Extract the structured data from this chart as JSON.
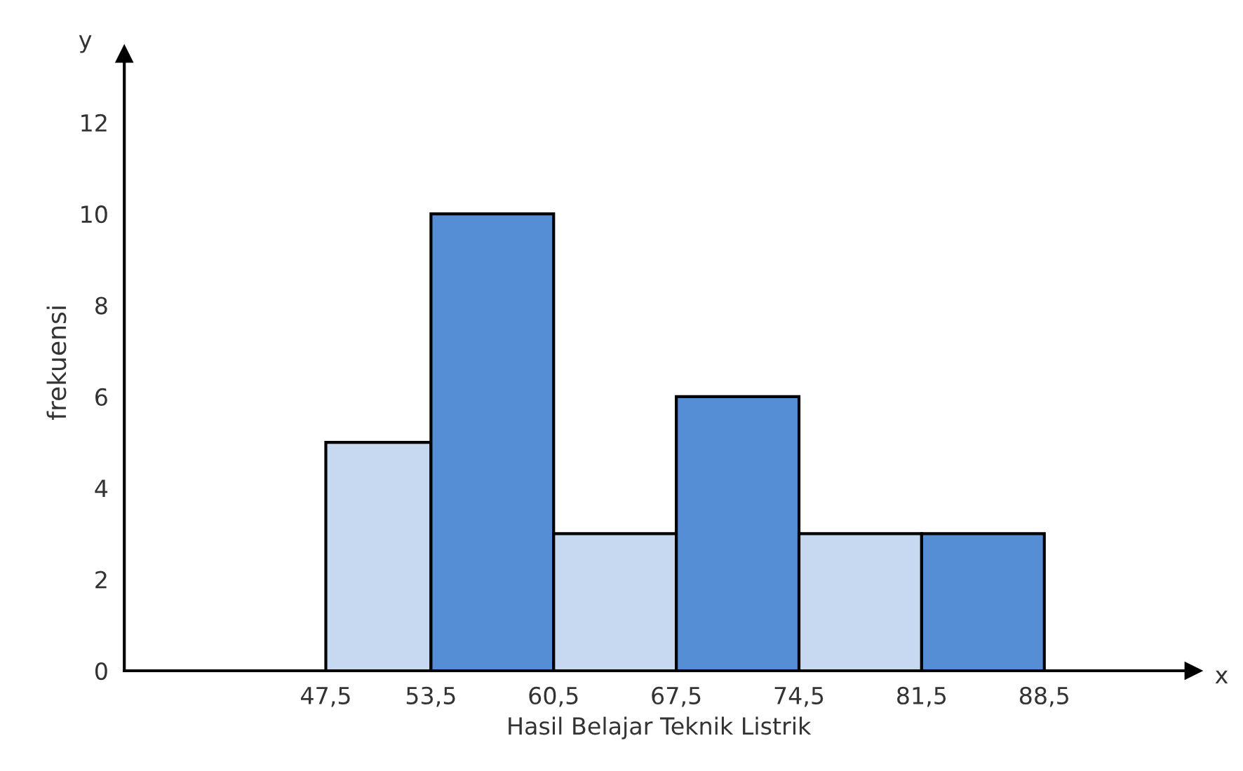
{
  "chart_data": {
    "type": "histogram",
    "xlabel": "Hasil Belajar Teknik Listrik",
    "ylabel": "frekuensi",
    "bins": [
      47.5,
      53.5,
      60.5,
      67.5,
      74.5,
      81.5,
      88.5
    ],
    "values": [
      5,
      10,
      3,
      6,
      3,
      3
    ],
    "colors": [
      "#c6d9f1",
      "#558ed5",
      "#c6d9f1",
      "#558ed5",
      "#c6d9f1",
      "#558ed5"
    ],
    "xlim": [
      36,
      97
    ],
    "ylim": [
      0,
      13.5
    ],
    "xticks": [
      {
        "value": 47.5,
        "label": "47,5"
      },
      {
        "value": 53.5,
        "label": "53,5"
      },
      {
        "value": 60.5,
        "label": "60,5"
      },
      {
        "value": 67.5,
        "label": "67,5"
      },
      {
        "value": 74.5,
        "label": "74,5"
      },
      {
        "value": 81.5,
        "label": "81,5"
      },
      {
        "value": 88.5,
        "label": "88,5"
      }
    ],
    "yticks": [
      0,
      2,
      4,
      6,
      8,
      10,
      12
    ],
    "annotations": [
      "x",
      "y"
    ],
    "grid": false,
    "legend": false
  }
}
